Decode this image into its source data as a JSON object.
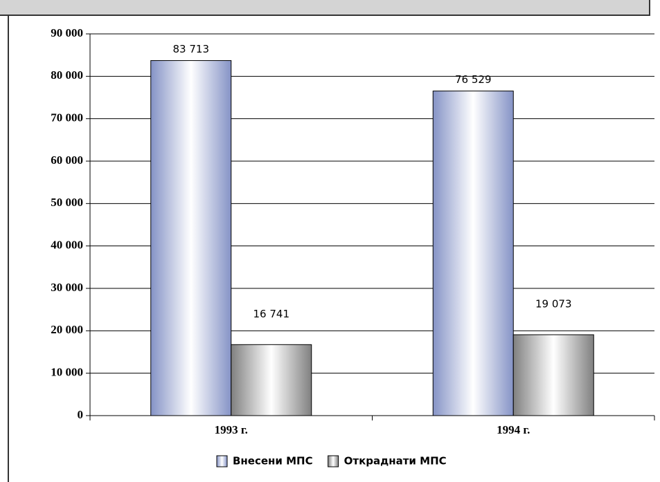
{
  "chart_data": {
    "type": "bar",
    "categories": [
      "1993 г.",
      "1994 г."
    ],
    "series": [
      {
        "name": "Внесени МПС",
        "color": "#8593c6",
        "values": [
          83713,
          76529
        ],
        "value_labels": [
          "83 713",
          "76 529"
        ]
      },
      {
        "name": "Откраднати МПС",
        "color": "#808080",
        "values": [
          16741,
          19073
        ],
        "value_labels": [
          "16 741",
          "19 073"
        ]
      }
    ],
    "ylim": [
      0,
      90000
    ],
    "yticks": [
      {
        "value": 0,
        "label": "0"
      },
      {
        "value": 10000,
        "label": "10 000"
      },
      {
        "value": 20000,
        "label": "20 000"
      },
      {
        "value": 30000,
        "label": "30 000"
      },
      {
        "value": 40000,
        "label": "40 000"
      },
      {
        "value": 50000,
        "label": "50 000"
      },
      {
        "value": 60000,
        "label": "60 000"
      },
      {
        "value": 70000,
        "label": "70 000"
      },
      {
        "value": 80000,
        "label": "80 000"
      },
      {
        "value": 90000,
        "label": "90 000"
      }
    ],
    "grid": true,
    "legend": "bottom"
  }
}
